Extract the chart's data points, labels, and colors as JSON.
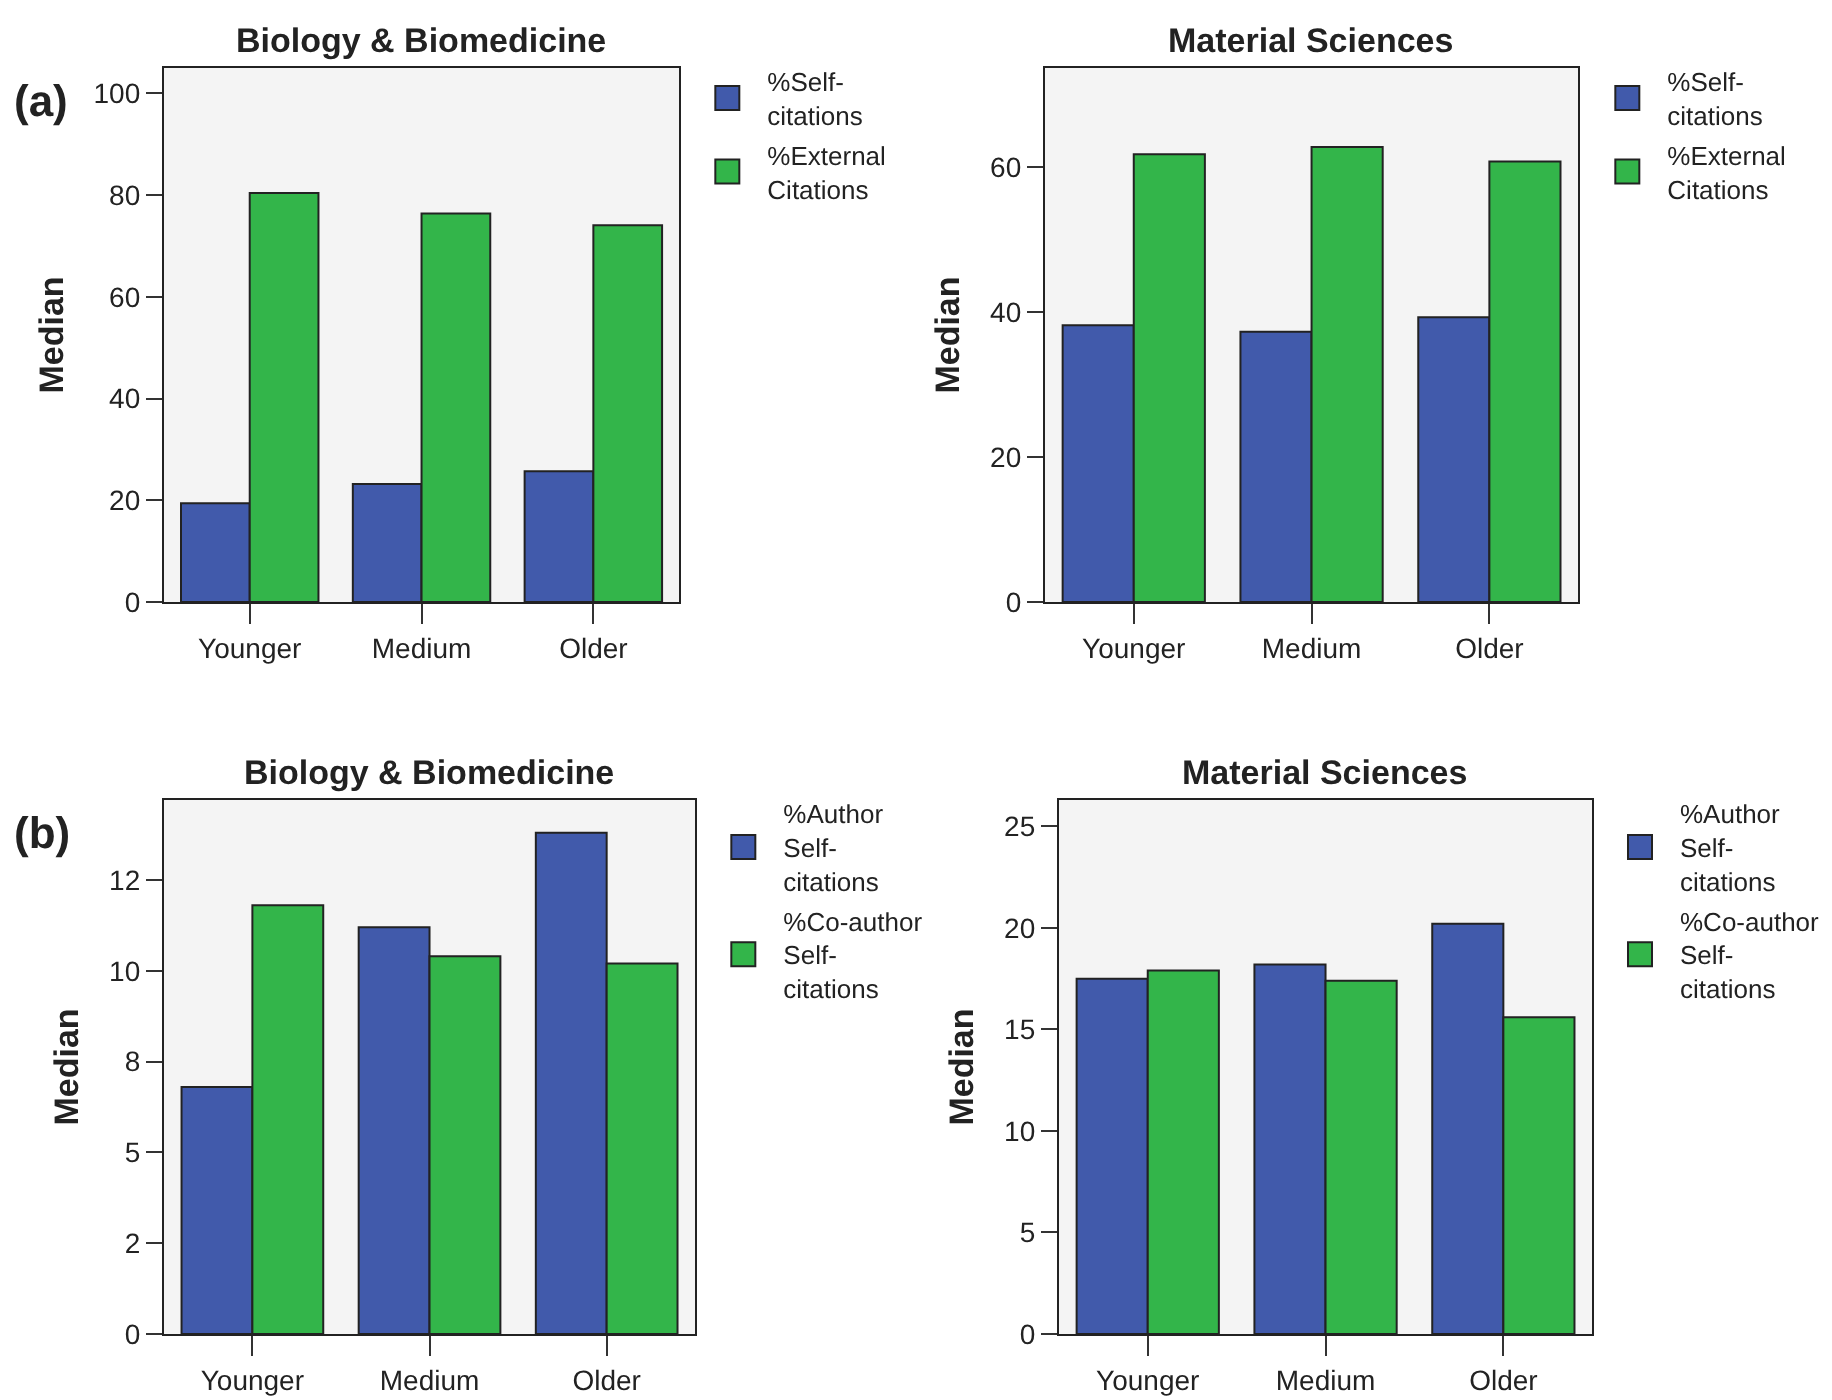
{
  "chart_data": [
    {
      "type": "bar",
      "title": "Biology & Biomedicine",
      "ylabel": "Median",
      "annotations": [
        "(a)"
      ],
      "categories": [
        "Younger",
        "Medium",
        "Older"
      ],
      "series": [
        {
          "name": "%Self-citations",
          "color": "#415aab",
          "values": [
            19.4,
            23.2,
            25.7
          ]
        },
        {
          "name": "%External Citations",
          "color": "#33b54a",
          "values": [
            80.4,
            76.4,
            74.1
          ]
        }
      ],
      "ylim": [
        0,
        105
      ],
      "yticks": [
        0,
        20,
        40,
        60,
        80,
        100
      ],
      "grid": false,
      "legend": "top right"
    },
    {
      "type": "bar",
      "title": "Material Sciences",
      "ylabel": "Median",
      "categories": [
        "Younger",
        "Medium",
        "Older"
      ],
      "series": [
        {
          "name": "%Self-citations",
          "color": "#415aab",
          "values": [
            38.2,
            37.3,
            39.3
          ]
        },
        {
          "name": "%External Citations",
          "color": "#33b54a",
          "values": [
            61.8,
            62.8,
            60.8
          ]
        }
      ],
      "ylim": [
        0,
        73.7
      ],
      "yticks": [
        0,
        20,
        40,
        60
      ],
      "grid": false,
      "legend": "top right"
    },
    {
      "type": "bar",
      "title": "Biology & Biomedicine",
      "ylabel": "Median",
      "annotations": [
        "(b)"
      ],
      "categories": [
        "Younger",
        "Medium",
        "Older"
      ],
      "series": [
        {
          "name": "%Author Self-citations",
          "color": "#415aab",
          "values": [
            6.8,
            11.2,
            13.8
          ]
        },
        {
          "name": "%Co-author Self-citations",
          "color": "#33b54a",
          "values": [
            11.8,
            10.4,
            10.2
          ]
        }
      ],
      "ylim": [
        0,
        14.7
      ],
      "yticks": [
        0,
        {
          "value": 2.5,
          "label": "2"
        },
        5,
        {
          "value": 7.5,
          "label": "8"
        },
        10,
        {
          "value": 12.5,
          "label": "12"
        }
      ],
      "grid": false,
      "legend": "top right"
    },
    {
      "type": "bar",
      "title": "Material Sciences",
      "ylabel": "Median",
      "categories": [
        "Younger",
        "Medium",
        "Older"
      ],
      "series": [
        {
          "name": "%Author Self-citations",
          "color": "#415aab",
          "values": [
            17.5,
            18.2,
            20.2
          ]
        },
        {
          "name": "%Co-author Self-citations",
          "color": "#33b54a",
          "values": [
            17.9,
            17.4,
            15.6
          ]
        }
      ],
      "ylim": [
        0,
        26.3
      ],
      "yticks": [
        0,
        5,
        10,
        15,
        20,
        25
      ],
      "grid": false,
      "legend": "top right"
    }
  ]
}
